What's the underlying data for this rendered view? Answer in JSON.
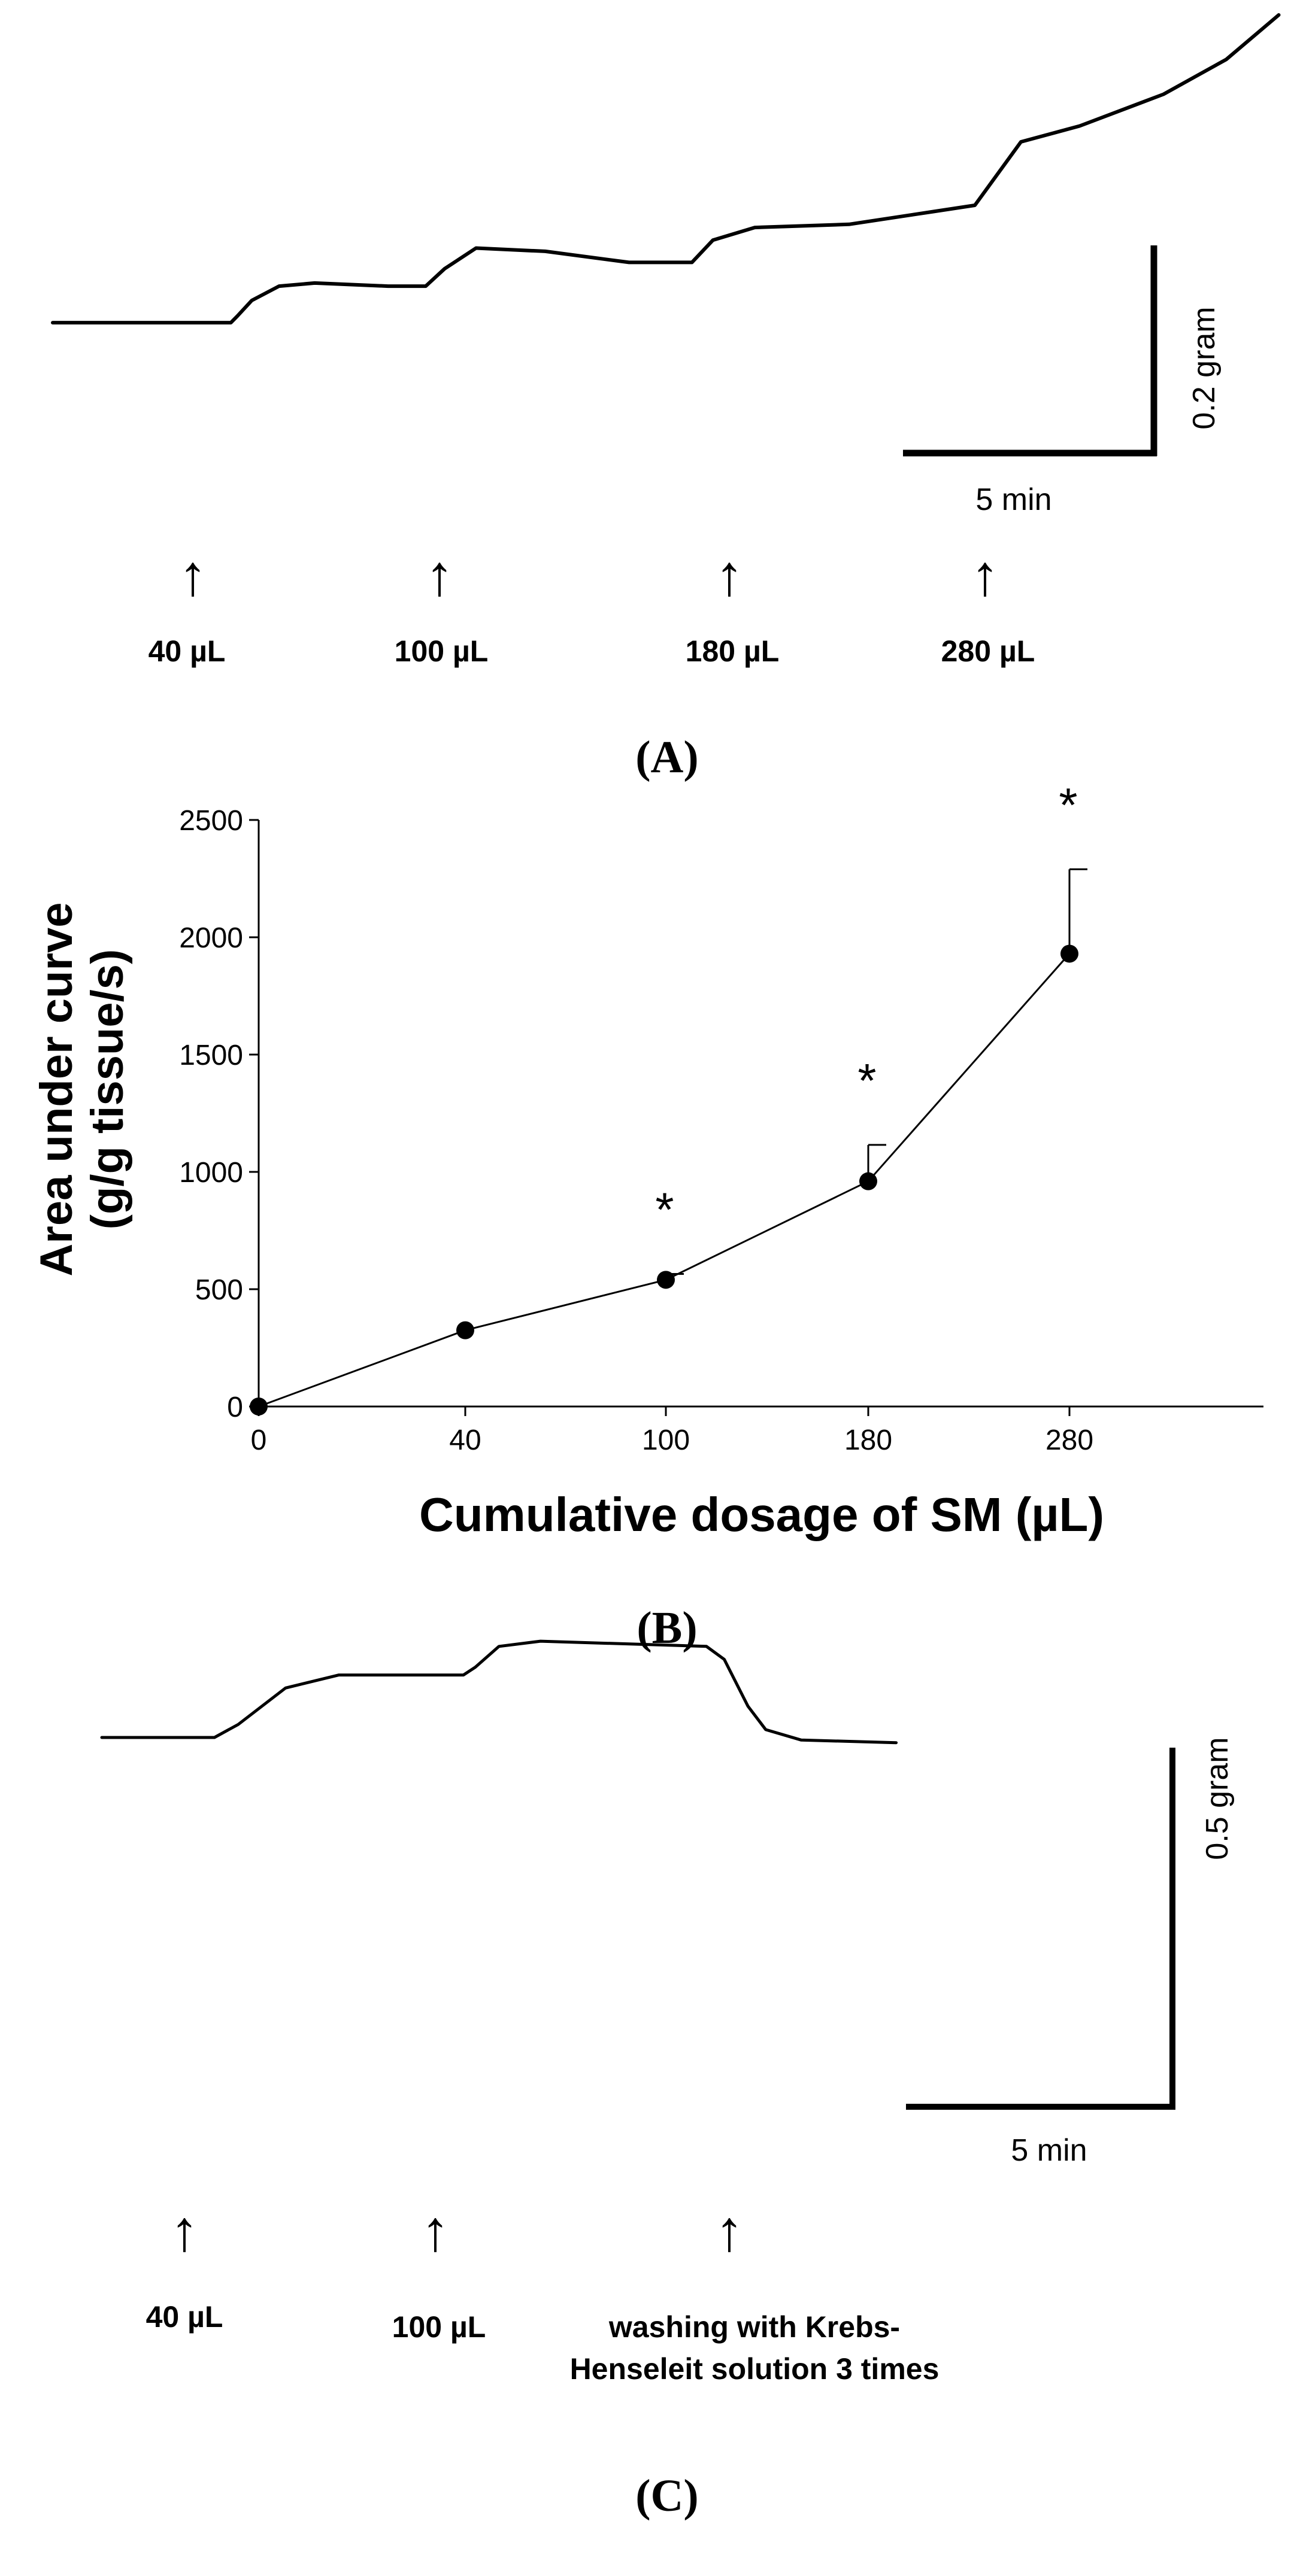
{
  "figure": {
    "panels": [
      {
        "label": "(A)",
        "type": "tension-trace",
        "scalebar": {
          "vertical_label": "0.2 gram",
          "horizontal_label": "5 min"
        },
        "additions": [
          "40 µL",
          "100 µL",
          "180 µL",
          "280 µL"
        ],
        "arrow_glyph": "↑",
        "trace": [
          [
            0.0,
            0.06
          ],
          [
            0.85,
            0.06
          ],
          [
            0.88,
            0.1
          ],
          [
            0.95,
            0.2
          ],
          [
            1.08,
            0.29
          ],
          [
            1.25,
            0.31
          ],
          [
            1.6,
            0.29
          ],
          [
            1.78,
            0.29
          ],
          [
            1.87,
            0.4
          ],
          [
            2.02,
            0.53
          ],
          [
            2.35,
            0.51
          ],
          [
            2.75,
            0.44
          ],
          [
            3.05,
            0.44
          ],
          [
            3.15,
            0.58
          ],
          [
            3.35,
            0.66
          ],
          [
            3.8,
            0.68
          ],
          [
            4.2,
            0.76
          ],
          [
            4.4,
            0.8
          ],
          [
            4.62,
            1.2
          ],
          [
            4.9,
            1.3
          ],
          [
            5.3,
            1.5
          ],
          [
            5.6,
            1.72
          ],
          [
            5.85,
            2.0
          ]
        ]
      },
      {
        "label": "(B)",
        "type": "line",
        "chart_data": {
          "type": "line",
          "title": "",
          "xlabel": "Cumulative dosage of SM (µL)",
          "ylabel_line1": "Area under curve",
          "ylabel_line2": "(g/g tissue/s)",
          "categories": [
            "0",
            "40",
            "100",
            "180",
            "280"
          ],
          "values": [
            0,
            325,
            540,
            960,
            1930
          ],
          "error_plus": [
            0,
            0,
            25,
            155,
            360
          ],
          "significance": [
            "",
            "",
            "*",
            "*",
            "*"
          ],
          "ylim": [
            0,
            2500
          ],
          "yticks": [
            0,
            500,
            1000,
            1500,
            2000,
            2500
          ],
          "grid": false,
          "legend": "none"
        }
      },
      {
        "label": "(C)",
        "type": "tension-trace",
        "scalebar": {
          "vertical_label": "0.5 gram",
          "horizontal_label": "5 min"
        },
        "additions": [
          "40 µL",
          "100 µL"
        ],
        "washing_line1": "washing with Krebs-",
        "washing_line2": "Henseleit solution 3 times",
        "arrow_glyph": "↑",
        "trace": [
          [
            0.0,
            0.0
          ],
          [
            0.95,
            0.0
          ],
          [
            1.15,
            0.05
          ],
          [
            1.55,
            0.19
          ],
          [
            2.0,
            0.24
          ],
          [
            3.05,
            0.24
          ],
          [
            3.15,
            0.27
          ],
          [
            3.35,
            0.35
          ],
          [
            3.7,
            0.37
          ],
          [
            5.1,
            0.35
          ],
          [
            5.25,
            0.3
          ],
          [
            5.45,
            0.12
          ],
          [
            5.6,
            0.03
          ],
          [
            5.9,
            -0.01
          ],
          [
            6.7,
            -0.02
          ]
        ]
      }
    ]
  }
}
